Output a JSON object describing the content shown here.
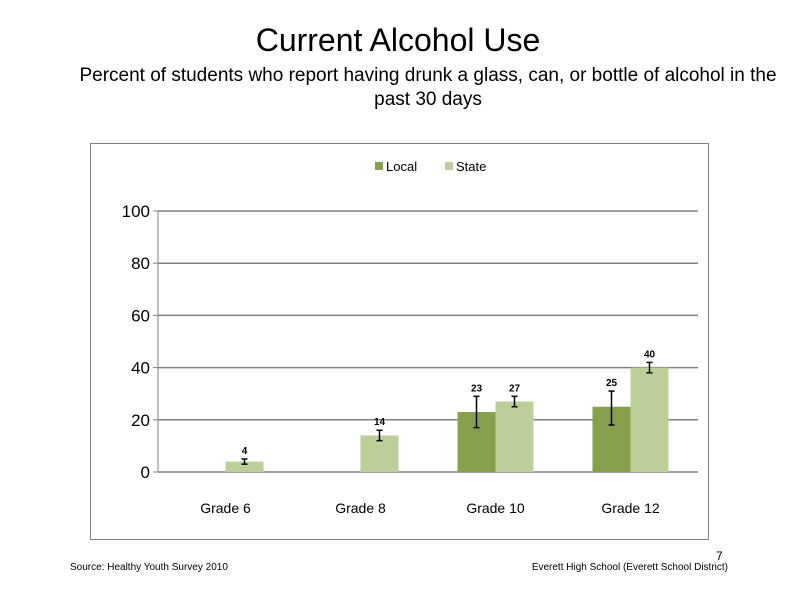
{
  "slide": {
    "title": "Current Alcohol Use",
    "subtitle": "Percent of students who report having drunk a glass, can, or bottle of alcohol in the past 30 days",
    "source": "Source: Healthy Youth Survey 2010",
    "school": "Everett High School (Everett School District)",
    "page_number": "7"
  },
  "chart_data": {
    "type": "bar",
    "categories": [
      "Grade 6",
      "Grade 8",
      "Grade 10",
      "Grade 12"
    ],
    "series": [
      {
        "name": "Local",
        "color": "#86a04c",
        "values": [
          null,
          null,
          23,
          25
        ],
        "error": [
          null,
          null,
          [
            17,
            29
          ],
          [
            18,
            31
          ]
        ]
      },
      {
        "name": "State",
        "color": "#bccf99",
        "values": [
          4,
          14,
          27,
          40
        ],
        "error": [
          [
            3,
            5
          ],
          [
            12,
            16
          ],
          [
            25,
            29
          ],
          [
            38,
            42
          ]
        ]
      }
    ],
    "ylim": [
      0,
      100
    ],
    "yticks": [
      0,
      20,
      40,
      60,
      80,
      100
    ],
    "grid": true,
    "legend": "top-center",
    "xlabel": "",
    "ylabel": ""
  }
}
